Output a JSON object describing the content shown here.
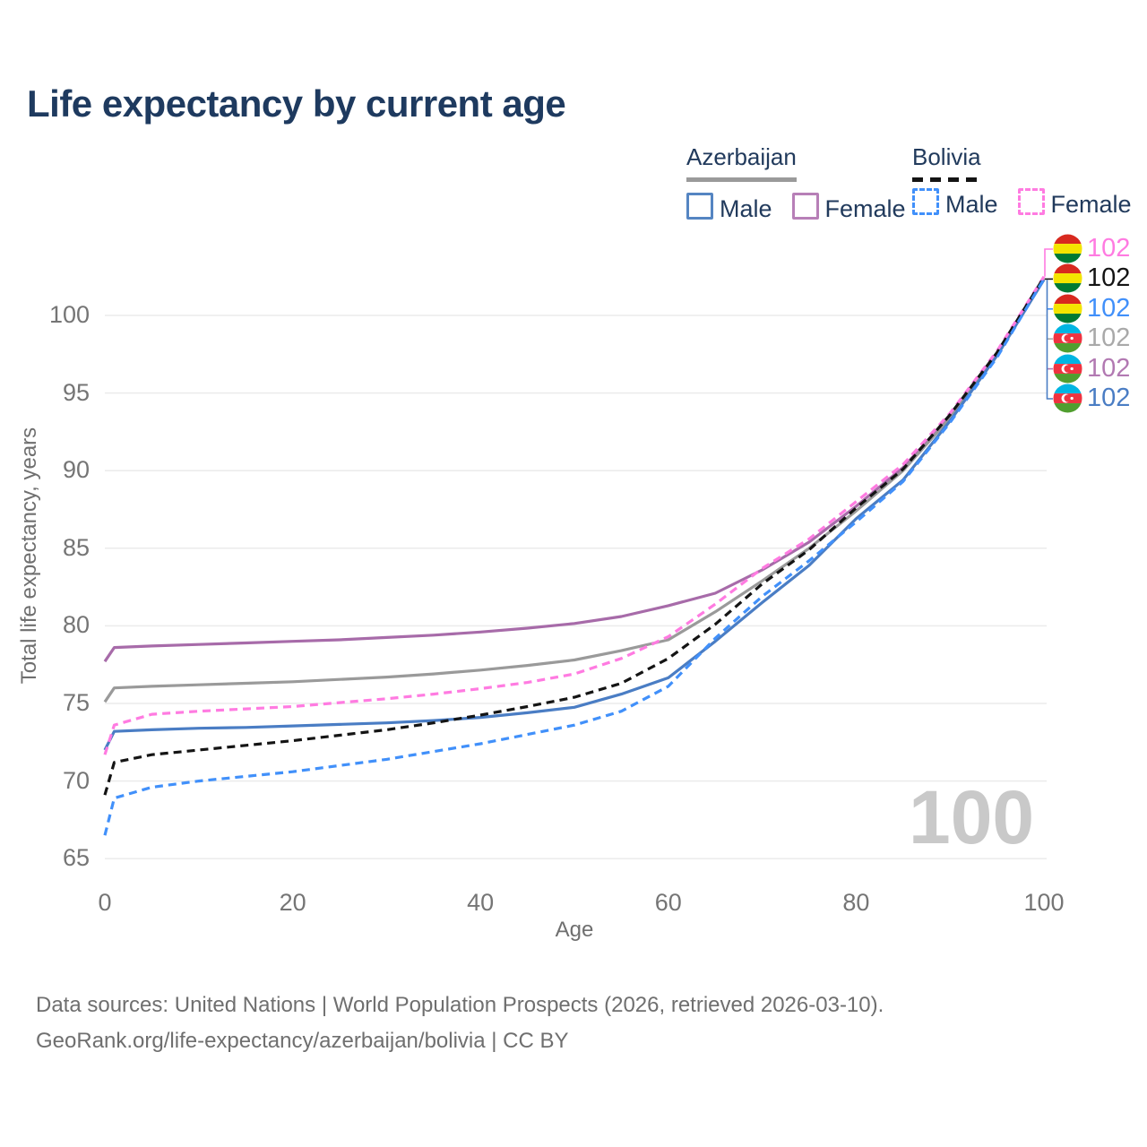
{
  "title": "Life expectancy by current age",
  "legend": {
    "groups": [
      {
        "label": "Azerbaijan",
        "line_style": "solid",
        "underline_color": "#9a9a9a",
        "items": [
          {
            "label": "Male",
            "color": "#4a7dc4"
          },
          {
            "label": "Female",
            "color": "#b77fb7"
          }
        ]
      },
      {
        "label": "Bolivia",
        "line_style": "dashed",
        "underline_color": "#141414",
        "items": [
          {
            "label": "Male",
            "color": "#4190fa"
          },
          {
            "label": "Female",
            "color": "#ff7be1"
          }
        ]
      }
    ]
  },
  "watermark": "100",
  "footer": {
    "line1": "Data sources: United Nations | World Population Prospects (2026, retrieved 2026-03-10).",
    "line2": "GeoRank.org/life-expectancy/azerbaijan/bolivia | CC BY"
  },
  "right_labels": [
    {
      "flag": "bolivia",
      "series": "Bolivia Female",
      "value": "102",
      "color": "#ff7be1"
    },
    {
      "flag": "bolivia",
      "series": "Bolivia",
      "value": "102",
      "color": "#141414"
    },
    {
      "flag": "bolivia",
      "series": "Bolivia Male",
      "value": "102",
      "color": "#4190fa"
    },
    {
      "flag": "azerbaijan",
      "series": "Azerbaijan",
      "value": "102",
      "color": "#a9a9a9"
    },
    {
      "flag": "azerbaijan",
      "series": "Azerbaijan Female",
      "value": "102",
      "color": "#b279b2"
    },
    {
      "flag": "azerbaijan",
      "series": "Azerbaijan Male",
      "value": "102",
      "color": "#4a7dc4"
    }
  ],
  "chart_data": {
    "type": "line",
    "title": "Life expectancy by current age",
    "xlabel": "Age",
    "ylabel": "Total life expectancy, years",
    "xlim": [
      0,
      100
    ],
    "ylim": [
      65,
      103
    ],
    "xticks": [
      0,
      20,
      40,
      60,
      80,
      100
    ],
    "yticks": [
      65,
      70,
      75,
      80,
      85,
      90,
      95,
      100
    ],
    "grid": "horizontal",
    "legend_position": "top-right",
    "x": [
      0,
      1,
      5,
      10,
      15,
      20,
      25,
      30,
      35,
      40,
      45,
      50,
      55,
      60,
      65,
      70,
      75,
      80,
      85,
      90,
      95,
      100
    ],
    "series": [
      {
        "name": "Azerbaijan Female",
        "country": "Azerbaijan",
        "sex": "Female",
        "color": "#a76ba9",
        "dash": "solid",
        "values": [
          77.7,
          78.6,
          78.7,
          78.8,
          78.9,
          79.0,
          79.1,
          79.25,
          79.4,
          79.6,
          79.85,
          80.15,
          80.6,
          81.3,
          82.1,
          83.6,
          85.4,
          87.7,
          90.2,
          93.5,
          97.6,
          102.4
        ]
      },
      {
        "name": "Azerbaijan",
        "country": "Azerbaijan",
        "sex": "Both",
        "color": "#9a9a9a",
        "dash": "solid",
        "values": [
          75.1,
          76.0,
          76.1,
          76.2,
          76.3,
          76.4,
          76.55,
          76.7,
          76.9,
          77.15,
          77.45,
          77.8,
          78.4,
          79.1,
          80.9,
          82.9,
          85.0,
          87.4,
          90.0,
          93.4,
          97.5,
          102.4
        ]
      },
      {
        "name": "Azerbaijan Male",
        "country": "Azerbaijan",
        "sex": "Male",
        "color": "#4a7dc4",
        "dash": "solid",
        "values": [
          72.0,
          73.2,
          73.3,
          73.4,
          73.45,
          73.55,
          73.65,
          73.75,
          73.9,
          74.1,
          74.4,
          74.75,
          75.6,
          76.65,
          79.0,
          81.5,
          83.9,
          86.9,
          89.4,
          93.2,
          97.4,
          102.3
        ]
      },
      {
        "name": "Bolivia Female",
        "country": "Bolivia",
        "sex": "Female",
        "color": "#ff7be1",
        "dash": "dashed",
        "values": [
          71.7,
          73.6,
          74.3,
          74.5,
          74.65,
          74.8,
          75.05,
          75.3,
          75.6,
          75.95,
          76.35,
          76.9,
          77.9,
          79.3,
          81.4,
          83.7,
          85.6,
          88.0,
          90.4,
          93.7,
          97.7,
          102.5
        ]
      },
      {
        "name": "Bolivia",
        "country": "Bolivia",
        "sex": "Both",
        "color": "#141414",
        "dash": "dashed",
        "values": [
          69.1,
          71.2,
          71.7,
          72.0,
          72.3,
          72.6,
          72.95,
          73.3,
          73.75,
          74.25,
          74.8,
          75.4,
          76.3,
          77.9,
          80.1,
          82.7,
          84.9,
          87.6,
          90.1,
          93.6,
          97.6,
          102.45
        ]
      },
      {
        "name": "Bolivia Male",
        "country": "Bolivia",
        "sex": "Male",
        "color": "#4190fa",
        "dash": "dashed",
        "values": [
          66.5,
          68.9,
          69.6,
          70.0,
          70.3,
          70.6,
          71.0,
          71.4,
          71.9,
          72.4,
          73.0,
          73.6,
          74.5,
          76.1,
          79.2,
          81.9,
          84.2,
          86.7,
          89.3,
          93.1,
          97.3,
          102.35
        ]
      }
    ],
    "end_value_label": "102"
  }
}
